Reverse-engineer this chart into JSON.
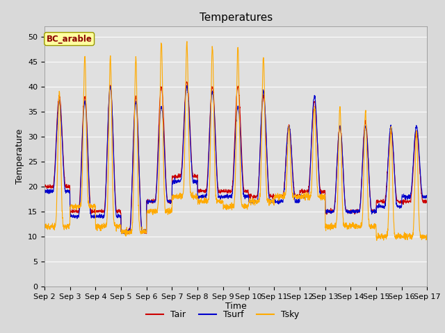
{
  "title": "Temperatures",
  "xlabel": "Time",
  "ylabel": "Temperature",
  "annotation": "BC_arable",
  "ylim": [
    0,
    52
  ],
  "xlim": [
    0,
    15
  ],
  "yticks": [
    0,
    5,
    10,
    15,
    20,
    25,
    30,
    35,
    40,
    45,
    50
  ],
  "n_days": 15,
  "legend_labels": [
    "Tair",
    "Tsurf",
    "Tsky"
  ],
  "line_colors": [
    "#cc0000",
    "#0000cc",
    "#ffaa00"
  ],
  "fig_bg_color": "#d9d9d9",
  "plot_bg_color": "#e0e0e0",
  "legend_bg": "#ffffff",
  "title_fontsize": 11,
  "label_fontsize": 9,
  "tick_fontsize": 8,
  "day_peaks_air": [
    38,
    38,
    40,
    38,
    40,
    41,
    40,
    40,
    38,
    32,
    37,
    32,
    33,
    31,
    31
  ],
  "day_mins_air": [
    20,
    15,
    15,
    11,
    17,
    22,
    19,
    19,
    18,
    18,
    19,
    15,
    15,
    17,
    17
  ],
  "day_peaks_surf": [
    37,
    37,
    40,
    37,
    36,
    40,
    39,
    36,
    39,
    32,
    38,
    32,
    32,
    32,
    32
  ],
  "day_mins_surf": [
    19,
    14,
    14,
    11,
    17,
    21,
    18,
    18,
    17,
    17,
    18,
    15,
    15,
    16,
    18
  ],
  "day_peaks_sky": [
    39,
    46,
    46,
    46,
    49,
    49,
    48,
    48,
    46,
    32,
    36,
    36,
    35,
    32,
    31
  ],
  "day_mins_sky": [
    12,
    16,
    12,
    11,
    15,
    18,
    17,
    16,
    17,
    18,
    18,
    12,
    12,
    10,
    10
  ],
  "sky_peak_sharpness": 8.0,
  "air_peak_sharpness": 2.0,
  "pts_per_day": 144
}
